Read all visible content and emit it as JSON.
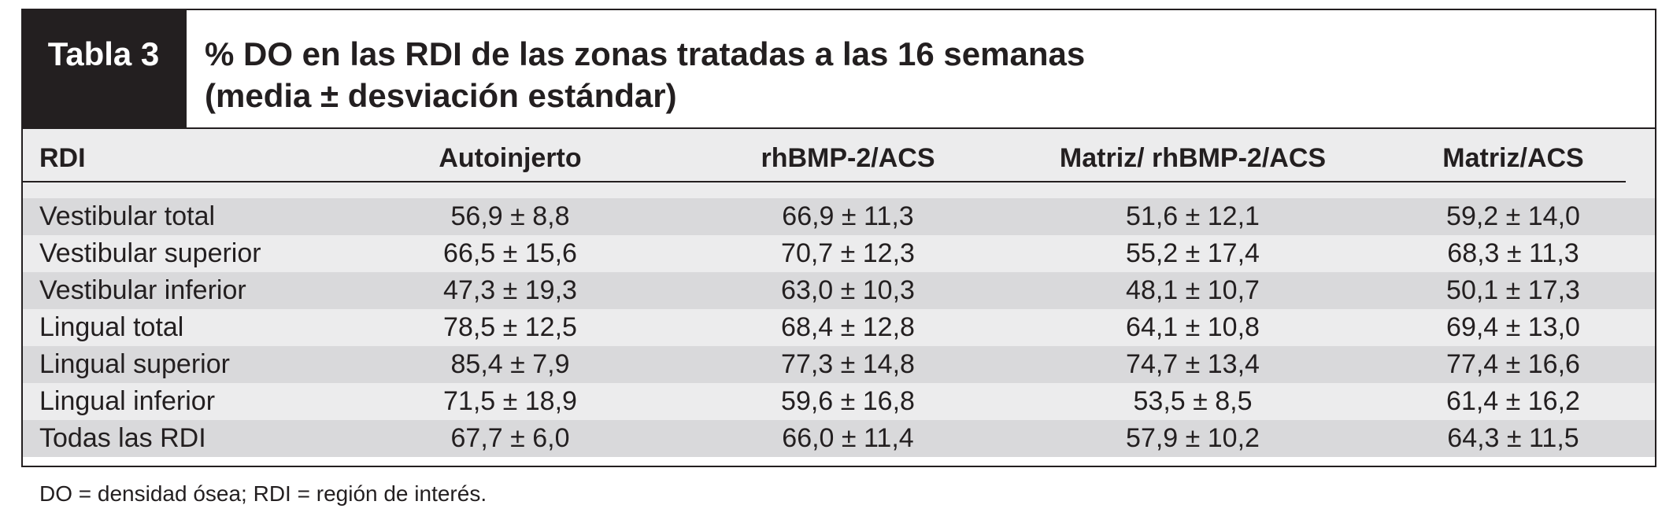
{
  "header": {
    "label": "Tabla 3",
    "title_lines": [
      "% DO en las RDI de las zonas tratadas a las 16 semanas",
      "(media ± desviación estándar)"
    ]
  },
  "table": {
    "columns": [
      "RDI",
      "Autoinjerto",
      "rhBMP-2/ACS",
      "Matriz/ rhBMP-2/ACS",
      "Matriz/ACS"
    ],
    "rows": [
      [
        "Vestibular total",
        "56,9 ± 8,8",
        "66,9 ± 11,3",
        "51,6 ± 12,1",
        "59,2 ± 14,0"
      ],
      [
        "Vestibular superior",
        "66,5 ± 15,6",
        "70,7 ± 12,3",
        "55,2 ± 17,4",
        "68,3 ± 11,3"
      ],
      [
        "Vestibular inferior",
        "47,3 ± 19,3",
        "63,0 ± 10,3",
        "48,1 ± 10,7",
        "50,1 ± 17,3"
      ],
      [
        "Lingual total",
        "78,5 ± 12,5",
        "68,4 ± 12,8",
        "64,1 ± 10,8",
        "69,4 ± 13,0"
      ],
      [
        "Lingual superior",
        "85,4 ± 7,9",
        "77,3 ± 14,8",
        "74,7 ± 13,4",
        "77,4 ± 16,6"
      ],
      [
        "Lingual inferior",
        "71,5 ± 18,9",
        "59,6 ± 16,8",
        "53,5 ± 8,5",
        "61,4 ± 16,2"
      ],
      [
        "Todas las RDI",
        "67,7 ± 6,0",
        "66,0 ± 11,4",
        "57,9 ± 10,2",
        "64,3 ± 11,5"
      ]
    ]
  },
  "footnote": "DO = densidad ósea; RDI = región de interés."
}
